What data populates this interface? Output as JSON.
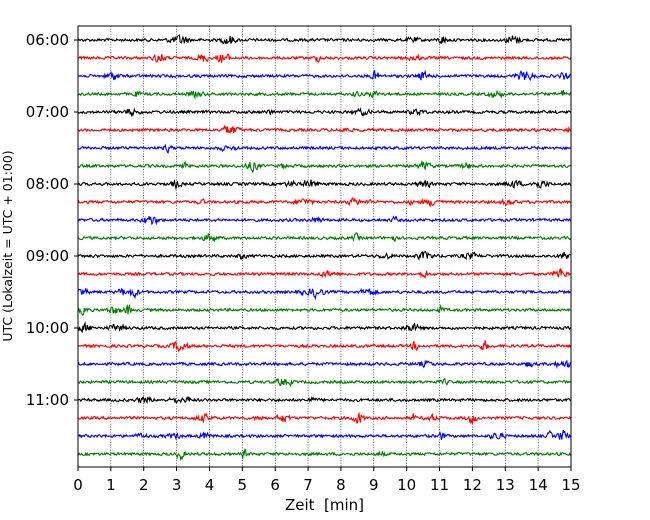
{
  "chart_data": {
    "type": "line",
    "title": "",
    "xlabel": "Zeit  [min]",
    "ylabel": "UTC (Lokalzeit = UTC + 01:00)",
    "xlim": [
      0,
      15
    ],
    "x_ticks": [
      "0",
      "1",
      "2",
      "3",
      "4",
      "5",
      "6",
      "7",
      "8",
      "9",
      "10",
      "11",
      "12",
      "13",
      "14",
      "15"
    ],
    "y_tick_labels": [
      "06:00",
      "07:00",
      "08:00",
      "09:00",
      "10:00",
      "11:00"
    ],
    "traces_start": "06:00",
    "trace_interval_minutes": 15,
    "trace_count": 24,
    "trace_colors": [
      "#000000",
      "#ff0000",
      "#0000ff",
      "#007f00"
    ],
    "grid": "vertical dotted lines at each minute"
  }
}
